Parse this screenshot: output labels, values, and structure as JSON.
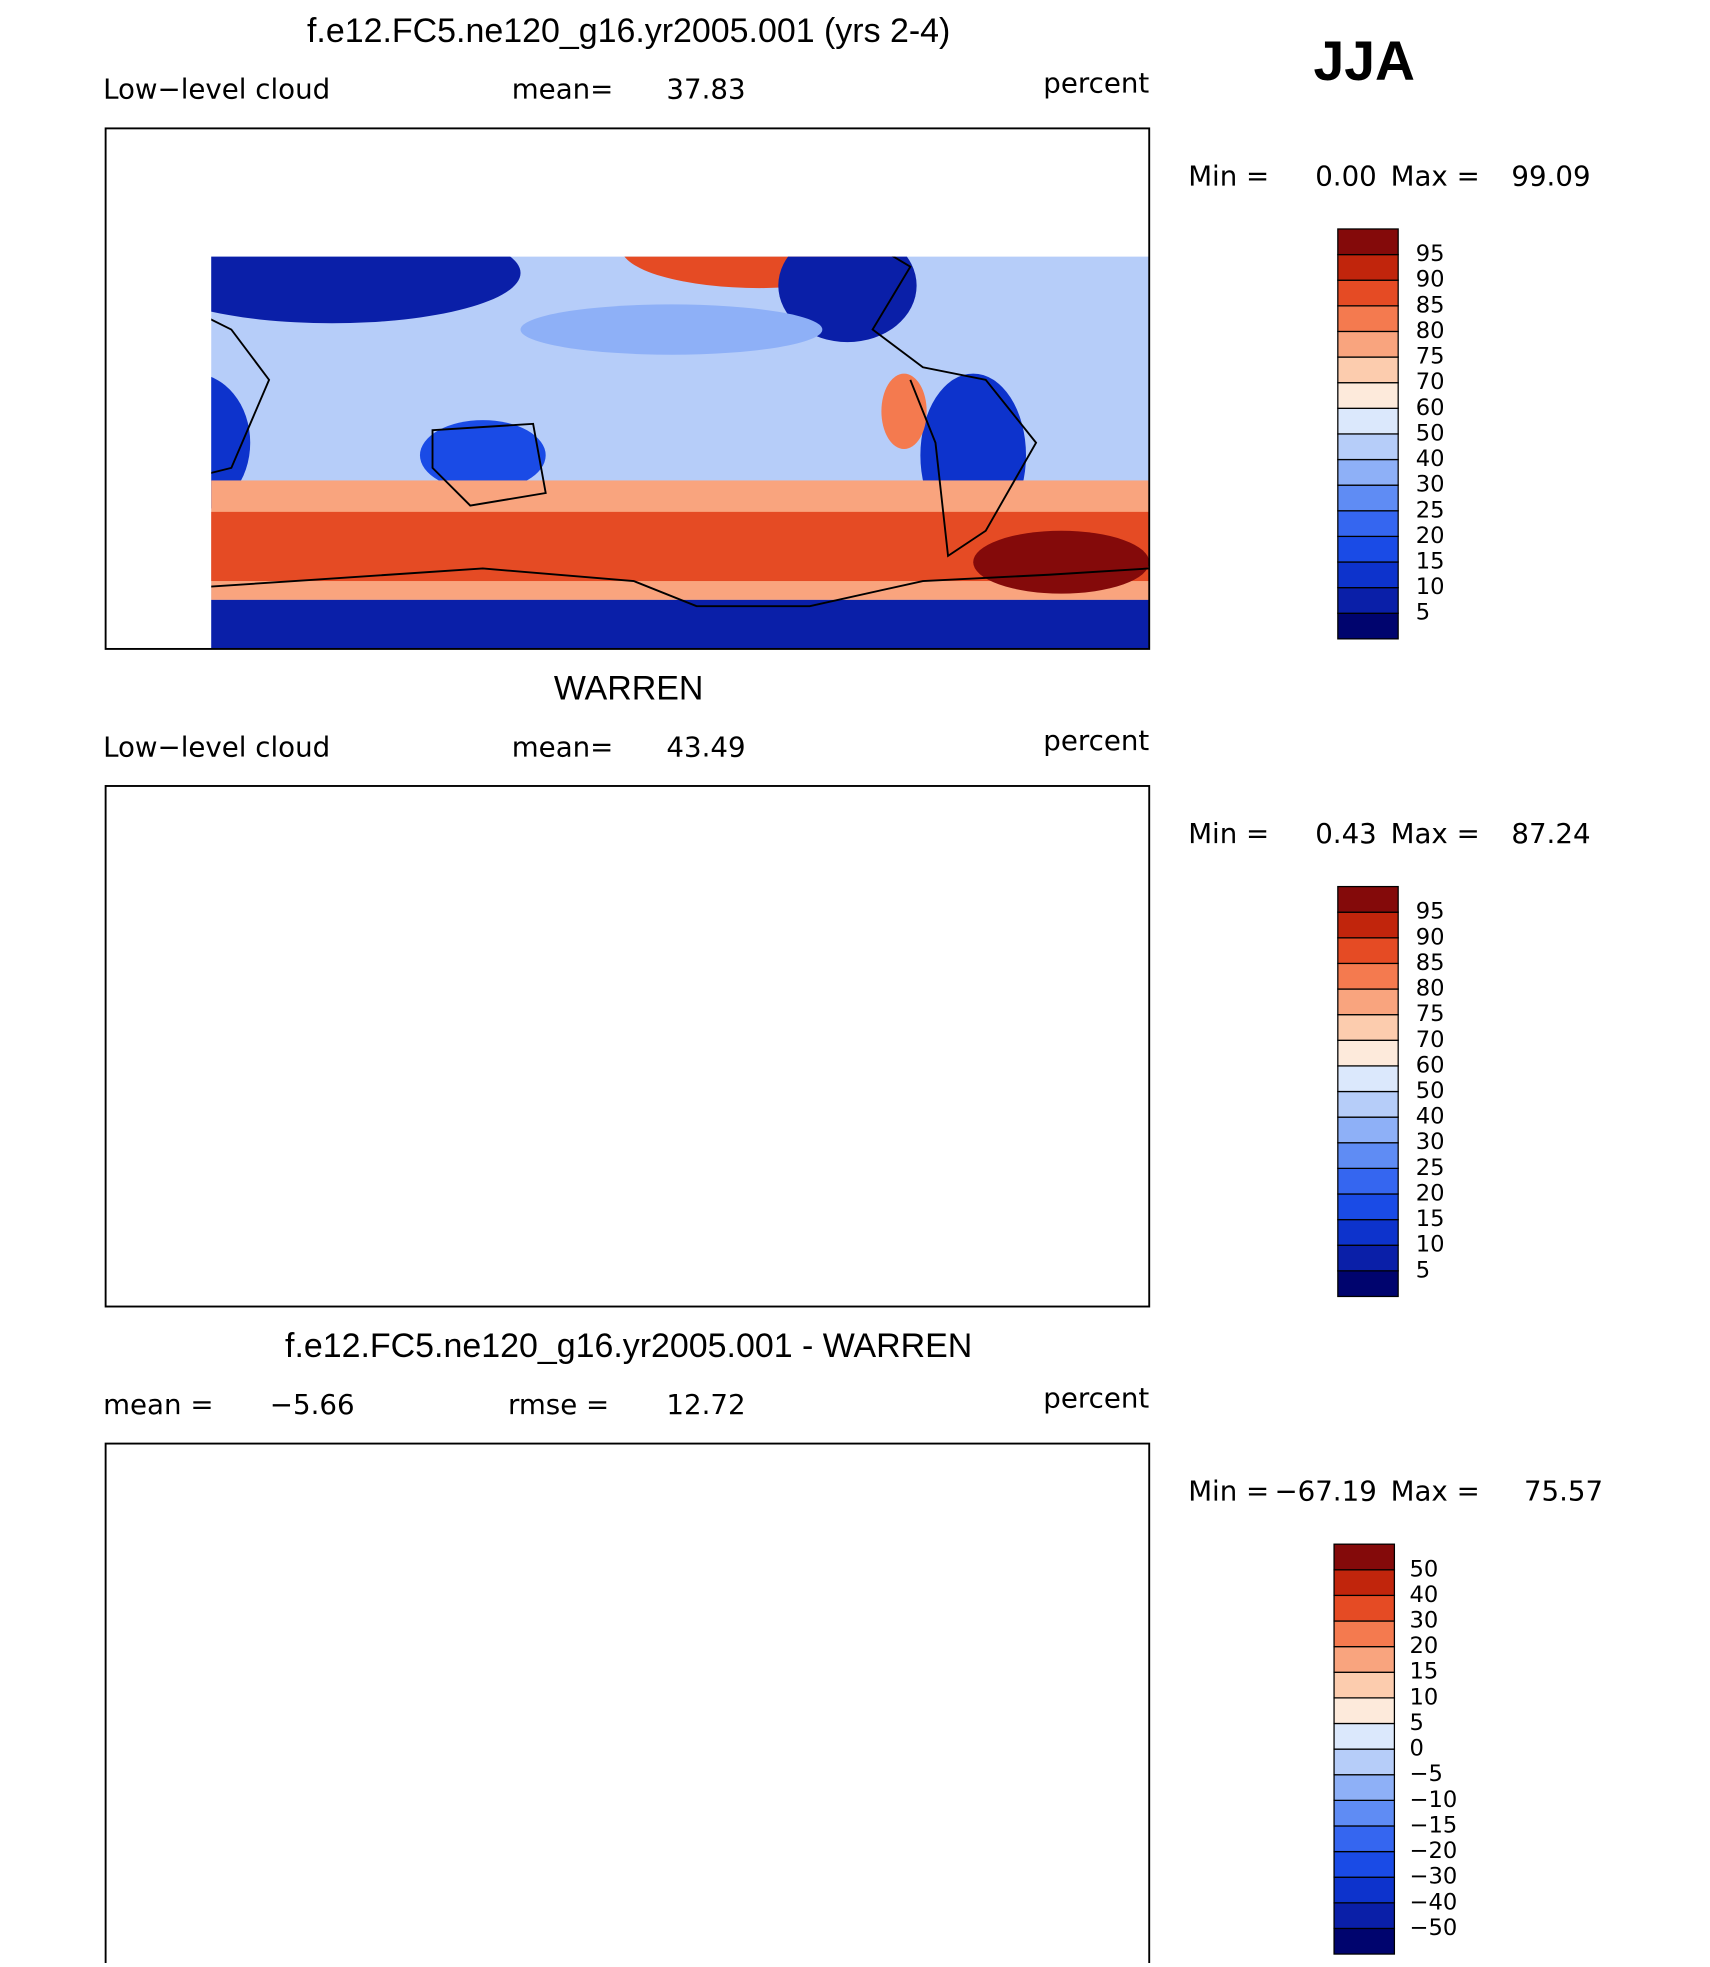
{
  "season": "JJA",
  "panels": [
    {
      "title": "f.e12.FC5.ne120_g16.yr2005.001 (yrs 2-4)",
      "left": {
        "label": "Low−level cloud"
      },
      "middle": {
        "label": "mean=",
        "value": "37.83"
      },
      "units": "percent",
      "range": {
        "min_label": "Min =",
        "min": "0.00",
        "max_label": "Max =",
        "max": "99.09"
      },
      "colorbar": {
        "labels": [
          "5",
          "10",
          "15",
          "20",
          "25",
          "30",
          "40",
          "50",
          "60",
          "70",
          "75",
          "80",
          "85",
          "90",
          "95"
        ],
        "colors": [
          "#00046e",
          "#0a1fa8",
          "#0d33cc",
          "#1a4be6",
          "#3566f0",
          "#5f8cf4",
          "#8eb0f7",
          "#b6cdf9",
          "#dbe8fc",
          "#fdeadb",
          "#fcccae",
          "#f9a47e",
          "#f47a4f",
          "#e54b24",
          "#c1250c",
          "#840a0a"
        ]
      }
    },
    {
      "title": "WARREN",
      "left": {
        "label": "Low−level cloud"
      },
      "middle": {
        "label": "mean=",
        "value": "43.49"
      },
      "units": "percent",
      "range": {
        "min_label": "Min =",
        "min": "0.43",
        "max_label": "Max =",
        "max": "87.24"
      },
      "colorbar": {
        "labels": [
          "5",
          "10",
          "15",
          "20",
          "25",
          "30",
          "40",
          "50",
          "60",
          "70",
          "75",
          "80",
          "85",
          "90",
          "95"
        ],
        "colors": [
          "#00046e",
          "#0a1fa8",
          "#0d33cc",
          "#1a4be6",
          "#3566f0",
          "#5f8cf4",
          "#8eb0f7",
          "#b6cdf9",
          "#dbe8fc",
          "#fdeadb",
          "#fcccae",
          "#f9a47e",
          "#f47a4f",
          "#e54b24",
          "#c1250c",
          "#840a0a"
        ]
      }
    },
    {
      "title": "f.e12.FC5.ne120_g16.yr2005.001 - WARREN",
      "left": {
        "label": "mean =",
        "value": "−5.66"
      },
      "middle": {
        "label": "rmse =",
        "value": "12.72"
      },
      "units": "percent",
      "range": {
        "min_label": "Min =",
        "min": "−67.19",
        "max_label": "Max =",
        "max": "75.57"
      },
      "colorbar": {
        "labels": [
          "−50",
          "−40",
          "−30",
          "−20",
          "−15",
          "−10",
          "−5",
          "0",
          "5",
          "10",
          "15",
          "20",
          "30",
          "40",
          "50"
        ],
        "colors": [
          "#00046e",
          "#0a1fa8",
          "#0d33cc",
          "#1a4be6",
          "#3566f0",
          "#5f8cf4",
          "#8eb0f7",
          "#b6cdf9",
          "#dbe8fc",
          "#fdeadb",
          "#fcccae",
          "#f9a47e",
          "#f47a4f",
          "#e54b24",
          "#c1250c",
          "#840a0a"
        ]
      }
    }
  ]
}
